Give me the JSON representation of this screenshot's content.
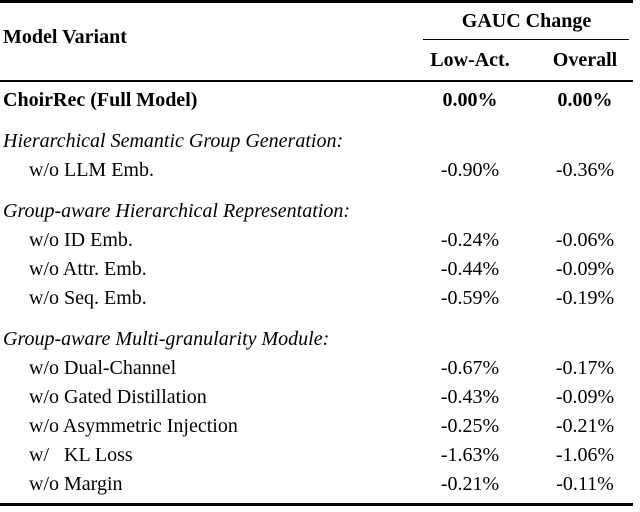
{
  "table": {
    "header": {
      "col1": "Model Variant",
      "group_header": "GAUC Change",
      "sub_cols": [
        "Low-Act.",
        "Overall"
      ]
    },
    "rows": [
      {
        "type": "bold",
        "label": "ChoirRec (Full Model)",
        "low_act": "0.00%",
        "overall": "0.00%"
      },
      {
        "type": "section",
        "label": "Hierarchical Semantic Group Generation:",
        "low_act": "",
        "overall": ""
      },
      {
        "type": "data",
        "label": "w/o LLM Emb.",
        "low_act": "-0.90%",
        "overall": "-0.36%"
      },
      {
        "type": "section",
        "label": "Group-aware Hierarchical Representation:",
        "low_act": "",
        "overall": ""
      },
      {
        "type": "data",
        "label": "w/o ID Emb.",
        "low_act": "-0.24%",
        "overall": "-0.06%"
      },
      {
        "type": "data",
        "label": "w/o Attr. Emb.",
        "low_act": "-0.44%",
        "overall": "-0.09%"
      },
      {
        "type": "data",
        "label": "w/o Seq. Emb.",
        "low_act": "-0.59%",
        "overall": "-0.19%"
      },
      {
        "type": "section",
        "label": "Group-aware Multi-granularity Module:",
        "low_act": "",
        "overall": ""
      },
      {
        "type": "data",
        "label": "w/o Dual-Channel",
        "low_act": "-0.67%",
        "overall": "-0.17%"
      },
      {
        "type": "data",
        "label": "w/o Gated Distillation",
        "low_act": "-0.43%",
        "overall": "-0.09%"
      },
      {
        "type": "data",
        "label": "w/o Asymmetric Injection",
        "low_act": "-0.25%",
        "overall": "-0.21%"
      },
      {
        "type": "data",
        "label": "w/   KL Loss",
        "low_act": "-1.63%",
        "overall": "-1.06%"
      },
      {
        "type": "data",
        "label": "w/o Margin",
        "low_act": "-0.21%",
        "overall": "-0.11%"
      }
    ],
    "colors": {
      "text": "#000000",
      "background": "#ffffff",
      "rule": "#000000"
    }
  }
}
